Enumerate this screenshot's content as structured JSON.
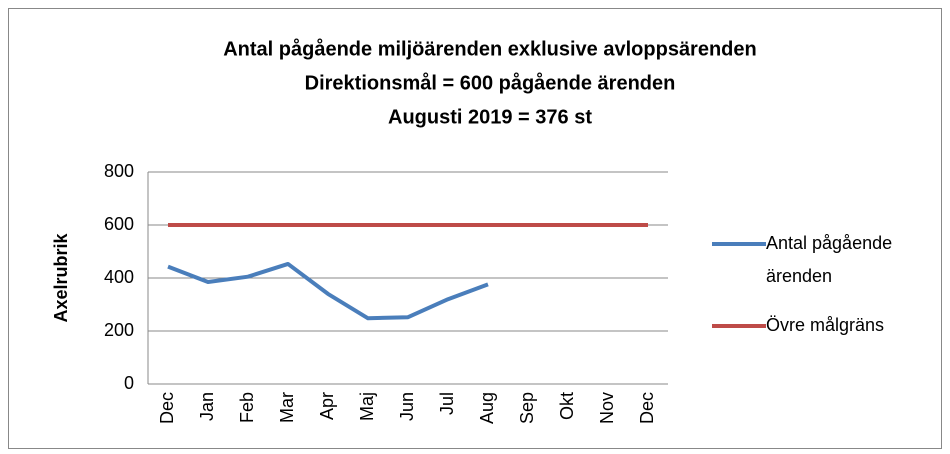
{
  "chart_data": {
    "type": "line",
    "title": "Antal pågående miljöärenden exklusive avloppsärenden",
    "subtitle": "Direktionsmål = 600 pågående ärenden",
    "annotation": "Augusti 2019 = 376 st",
    "y_label": "Axelrubrik",
    "categories": [
      "Dec",
      "Jan",
      "Feb",
      "Mar",
      "Apr",
      "Maj",
      "Jun",
      "Jul",
      "Aug",
      "Sep",
      "Okt",
      "Nov",
      "Dec"
    ],
    "series": [
      {
        "name": "Antal pågående ärenden",
        "color": "#4a7ebb",
        "values": [
          443,
          385,
          405,
          453,
          340,
          248,
          252,
          320,
          376,
          null,
          null,
          null,
          null
        ]
      },
      {
        "name": "Övre målgräns",
        "color": "#be4b48",
        "values": [
          600,
          600,
          600,
          600,
          600,
          600,
          600,
          600,
          600,
          600,
          600,
          600,
          600
        ]
      }
    ],
    "ylim": [
      0,
      800
    ],
    "yticks": [
      0,
      200,
      400,
      600,
      800
    ],
    "grid": true,
    "legend": "right"
  }
}
